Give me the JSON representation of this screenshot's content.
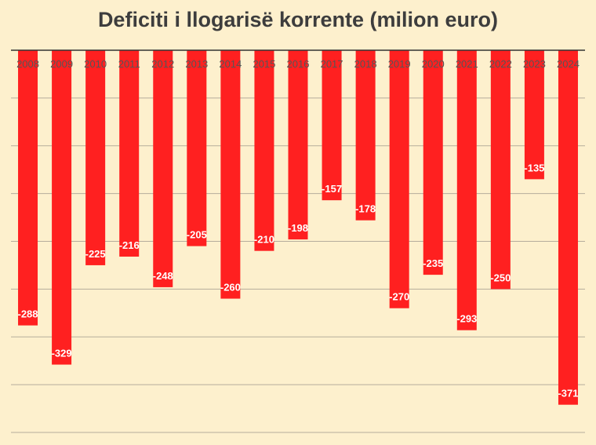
{
  "chart_data": {
    "type": "bar",
    "title": "Deficiti i llogarisë korrente (milion euro)",
    "categories": [
      "2008",
      "2009",
      "2010",
      "2011",
      "2012",
      "2013",
      "2014",
      "2015",
      "2016",
      "2017",
      "2018",
      "2019",
      "2020",
      "2021",
      "2022",
      "2023",
      "2024"
    ],
    "values": [
      -288,
      -329,
      -225,
      -216,
      -248,
      -205,
      -260,
      -210,
      -198,
      -157,
      -178,
      -270,
      -235,
      -293,
      -250,
      -135,
      -371
    ],
    "ylim": [
      -400,
      0
    ],
    "grid": true,
    "legend": "none",
    "colors": {
      "bar": "#ff2020",
      "background": "#fdf0cd",
      "grid": "#b5ad9c",
      "axis": "#333333",
      "title": "#3d3d3d",
      "data_label": "#ffffff",
      "tick_label": "#555555"
    }
  }
}
